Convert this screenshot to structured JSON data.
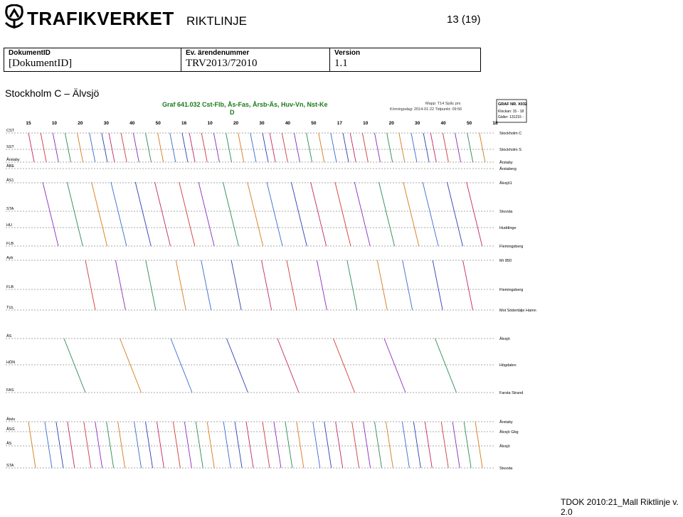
{
  "header": {
    "logo_text": "TRAFIKVERKET",
    "doc_type": "RIKTLINJE",
    "page_number": "13 (19)"
  },
  "meta": [
    {
      "label": "DokumentID",
      "value": "[DokumentID]"
    },
    {
      "label": "Ev. ärendenummer",
      "value": "TRV2013/72010"
    },
    {
      "label": "Version",
      "value": "1.1"
    }
  ],
  "section_title": "Stockholm C – Älvsjö",
  "graph": {
    "title_line1": "Graf 641.032 Cst-Flb, Ås-Fas, Årsb-Äs, Huv-Vn, Nst-Ke",
    "title_line2": "D",
    "info_line1": "Mapp: T14 Spåc prs",
    "info_line2": "Körningsdag: 2014-01-22  Tidpunkt: 09:56",
    "box_line1": "GRAF NR. X032",
    "box_line2": "Klockan: 15 - 18",
    "box_line3": "Gäller: 131215 -",
    "minute_ticks": [
      "15",
      "10",
      "20",
      "30",
      "40",
      "50",
      "16",
      "10",
      "20",
      "30",
      "40",
      "50",
      "17",
      "10",
      "20",
      "30",
      "40",
      "50",
      "18"
    ],
    "stations_left": [
      "CST",
      "SST",
      "Årstaby",
      "ÅBE",
      "ÄS1",
      "STA",
      "HU",
      "FLB",
      "Ayb",
      "FLB",
      "TUL",
      "ÄS",
      "HÖN",
      "FAS",
      "Ätstv",
      "ÅSG",
      "ÅS",
      "STA"
    ],
    "stations_right": [
      "Stockholm C",
      "Stockholm S",
      "Årstaby",
      "Årstaberg",
      "Älvsjö1",
      "Stuvsta",
      "Huddinge",
      "Flemingsberg",
      "Mr 850",
      "Flemingsberg",
      "Mot Södertälje Hamn",
      "Älvsjö",
      "Högdalen",
      "Farsta Strand",
      "Årstaby",
      "Älvsjö Gbg",
      "Älvsjö",
      "Stuvsta"
    ]
  },
  "footer": "TDOK 2010:21_Mall Riktlinje v. 2.0"
}
